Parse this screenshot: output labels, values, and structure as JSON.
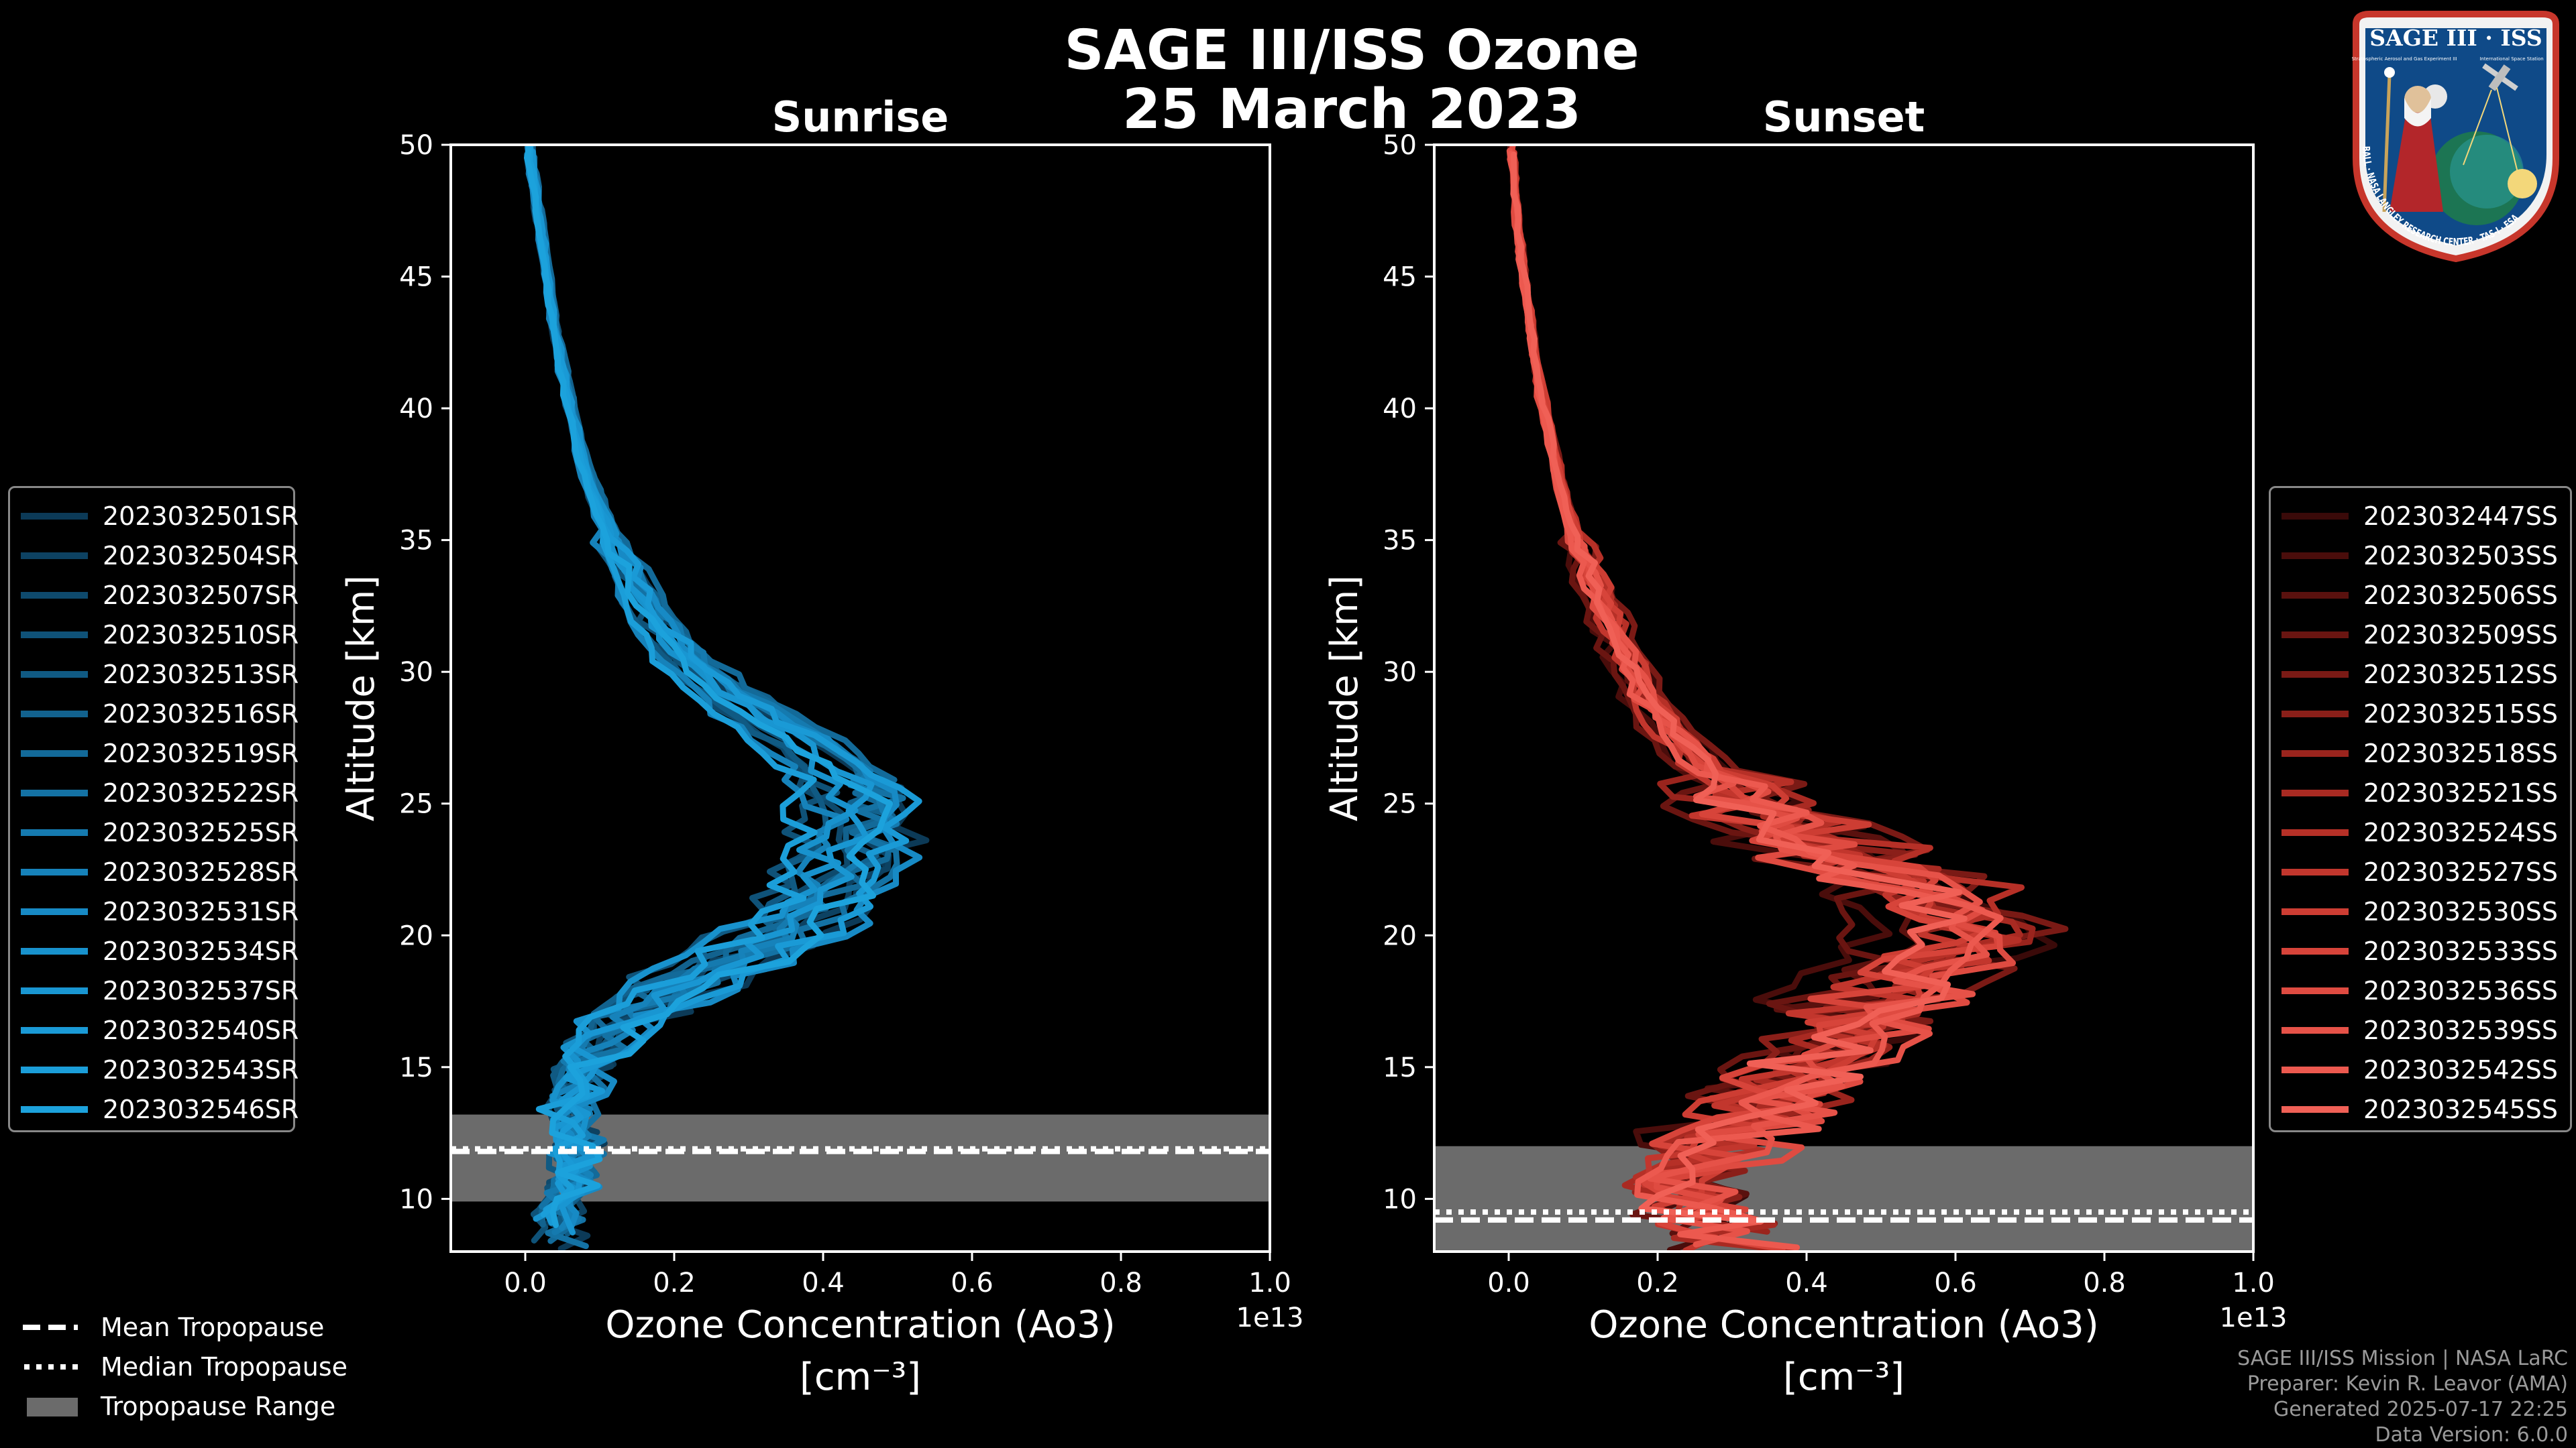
{
  "title": {
    "line1": "SAGE III/ISS Ozone",
    "line2": "25 March 2023"
  },
  "colors": {
    "background": "#000000",
    "sunrise": "#1b8fd4",
    "sunset": "#f0564a",
    "tropopause_band": "#6b6b6b"
  },
  "chart_data": [
    {
      "type": "line",
      "title": "Sunrise",
      "xlabel": "Ozone Concentration (Ao3)",
      "xunit": "[cm⁻³]",
      "ylabel": "Altitude [km]",
      "xlim": [
        -0.1,
        1.0
      ],
      "ylim": [
        8,
        50
      ],
      "x_scale_label": "1e13",
      "xticks": [
        "0.0",
        "0.2",
        "0.4",
        "0.6",
        "0.8",
        "1.0"
      ],
      "yticks": [
        "10",
        "15",
        "20",
        "25",
        "30",
        "35",
        "40",
        "45",
        "50"
      ],
      "tropopause": {
        "mean_km": 11.8,
        "median_km": 11.9,
        "range_km": [
          9.9,
          13.2
        ]
      },
      "mean_profile": {
        "altitude_km": [
          8.5,
          9.5,
          10.5,
          11.5,
          12.5,
          13.5,
          14.5,
          15.5,
          16.5,
          17.5,
          18.5,
          19.5,
          20.5,
          21.5,
          22.5,
          23.5,
          24.5,
          25.5,
          26.5,
          27.5,
          28.5,
          29.5,
          30.5,
          31.5,
          32.5,
          33.5,
          35,
          37,
          39,
          41,
          43,
          45,
          47,
          49,
          50
        ],
        "ozone_1e13": [
          0.05,
          0.05,
          0.06,
          0.07,
          0.07,
          0.06,
          0.07,
          0.09,
          0.12,
          0.17,
          0.24,
          0.31,
          0.37,
          0.41,
          0.44,
          0.45,
          0.46,
          0.45,
          0.42,
          0.37,
          0.31,
          0.26,
          0.22,
          0.19,
          0.165,
          0.145,
          0.12,
          0.09,
          0.07,
          0.055,
          0.04,
          0.03,
          0.02,
          0.01,
          0.005
        ]
      },
      "series": [
        {
          "name": "2023032501SR",
          "color": "#0c3a57"
        },
        {
          "name": "2023032504SR",
          "color": "#0d4262"
        },
        {
          "name": "2023032507SR",
          "color": "#0e4a6d"
        },
        {
          "name": "2023032510SR",
          "color": "#0f5278"
        },
        {
          "name": "2023032513SR",
          "color": "#105a83"
        },
        {
          "name": "2023032516SR",
          "color": "#12628e"
        },
        {
          "name": "2023032519SR",
          "color": "#136a99"
        },
        {
          "name": "2023032522SR",
          "color": "#1472a4"
        },
        {
          "name": "2023032525SR",
          "color": "#157aaf"
        },
        {
          "name": "2023032528SR",
          "color": "#1682ba"
        },
        {
          "name": "2023032531SR",
          "color": "#178ac5"
        },
        {
          "name": "2023032534SR",
          "color": "#1892cd"
        },
        {
          "name": "2023032537SR",
          "color": "#1996d2"
        },
        {
          "name": "2023032540SR",
          "color": "#1a9ad6"
        },
        {
          "name": "2023032543SR",
          "color": "#1b9ed9"
        },
        {
          "name": "2023032546SR",
          "color": "#1ca2dc"
        }
      ]
    },
    {
      "type": "line",
      "title": "Sunset",
      "xlabel": "Ozone Concentration (Ao3)",
      "xunit": "[cm⁻³]",
      "ylabel": "Altitude [km]",
      "xlim": [
        -0.1,
        1.0
      ],
      "ylim": [
        8,
        50
      ],
      "x_scale_label": "1e13",
      "xticks": [
        "0.0",
        "0.2",
        "0.4",
        "0.6",
        "0.8",
        "1.0"
      ],
      "yticks": [
        "10",
        "15",
        "20",
        "25",
        "30",
        "35",
        "40",
        "45",
        "50"
      ],
      "tropopause": {
        "mean_km": 9.2,
        "median_km": 9.5,
        "range_km": [
          8.0,
          12.0
        ]
      },
      "mean_profile": {
        "altitude_km": [
          8.5,
          9.5,
          10.5,
          11.5,
          12.5,
          13.5,
          14.5,
          15.5,
          16.5,
          17.5,
          18.5,
          19.5,
          20.5,
          21.5,
          22.5,
          23.5,
          24.5,
          25.5,
          26.5,
          27.5,
          28.5,
          29.5,
          30.5,
          31.5,
          32.5,
          33.5,
          35,
          37,
          39,
          41,
          43,
          45,
          47,
          49,
          50
        ],
        "ozone_1e13": [
          0.3,
          0.25,
          0.22,
          0.25,
          0.3,
          0.35,
          0.38,
          0.42,
          0.45,
          0.5,
          0.55,
          0.6,
          0.6,
          0.56,
          0.48,
          0.4,
          0.33,
          0.28,
          0.25,
          0.22,
          0.19,
          0.17,
          0.155,
          0.14,
          0.125,
          0.11,
          0.09,
          0.07,
          0.055,
          0.04,
          0.03,
          0.02,
          0.012,
          0.006,
          0.003
        ]
      },
      "series": [
        {
          "name": "2023032447SS",
          "color": "#3a0a09"
        },
        {
          "name": "2023032503SS",
          "color": "#4a0d0b"
        },
        {
          "name": "2023032506SS",
          "color": "#5a110e"
        },
        {
          "name": "2023032509SS",
          "color": "#6a1511"
        },
        {
          "name": "2023032512SS",
          "color": "#7a1a15"
        },
        {
          "name": "2023032515SS",
          "color": "#8a1f19"
        },
        {
          "name": "2023032518SS",
          "color": "#9a241d"
        },
        {
          "name": "2023032521SS",
          "color": "#a92a22"
        },
        {
          "name": "2023032524SS",
          "color": "#b63027"
        },
        {
          "name": "2023032527SS",
          "color": "#c2362d"
        },
        {
          "name": "2023032530SS",
          "color": "#cd3d33"
        },
        {
          "name": "2023032533SS",
          "color": "#d7443a"
        },
        {
          "name": "2023032536SS",
          "color": "#df4b41"
        },
        {
          "name": "2023032539SS",
          "color": "#e65248"
        },
        {
          "name": "2023032542SS",
          "color": "#ec594f"
        },
        {
          "name": "2023032545SS",
          "color": "#f06056"
        }
      ]
    }
  ],
  "tropopause_legend": {
    "mean": "Mean Tropopause",
    "median": "Median Tropopause",
    "range": "Tropopause Range"
  },
  "logo": {
    "top_text": "SAGE III · ISS",
    "ring_text": "BALL · NASA LANGLEY RESEARCH CENTER · TAS-I · ESA",
    "side_text_left": "Stratospheric Aerosol and Gas Experiment III",
    "side_text_right": "International Space Station"
  },
  "credits": {
    "line1": "SAGE III/ISS Mission | NASA LaRC",
    "line2": "Preparer: Kevin R. Leavor (AMA)",
    "line3": "Generated 2025-07-17 22:25",
    "line4": "Data Version: 6.0.0"
  }
}
